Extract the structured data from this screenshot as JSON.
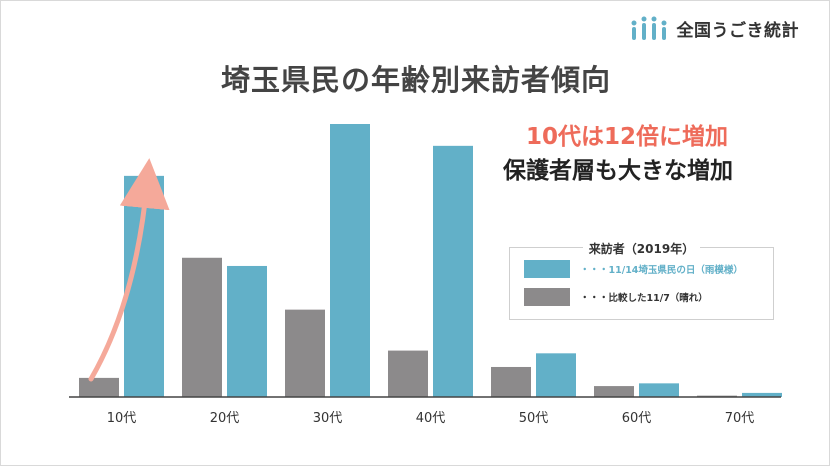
{
  "logo": {
    "text": "全国うごき統計",
    "icon": "people-icon"
  },
  "title": "埼玉県民の年齢別来訪者傾向",
  "headline": {
    "line1": "10代は12倍に増加",
    "line2": "保護者層も大きな増加"
  },
  "legend": {
    "title": "来訪者（2019年）",
    "items": [
      {
        "label": "・・・11/14埼玉県民の日（雨模様）",
        "color": "#62b0c8"
      },
      {
        "label": "・・・比較した11/7（晴れ）",
        "color": "#8c8a8b"
      }
    ]
  },
  "colors": {
    "blue": "#62b0c8",
    "gray": "#8c8a8b",
    "arrow": "#f5a99a",
    "highlight": "#ee6b5a"
  },
  "chart_data": {
    "type": "bar",
    "categories": [
      "10代",
      "20代",
      "30代",
      "40代",
      "50代",
      "60代",
      "70代"
    ],
    "series": [
      {
        "name": "比較した11/7（晴れ）",
        "values": [
          7,
          51,
          32,
          17,
          11,
          4,
          0.5
        ]
      },
      {
        "name": "11/14埼玉県民の日（雨模様）",
        "values": [
          81,
          48,
          100,
          92,
          16,
          5,
          1.5
        ]
      }
    ],
    "ylim": [
      0,
      100
    ],
    "grid": false,
    "legend_position": "right",
    "annotation": "arrow over 10代 from gray bar to blue bar"
  }
}
